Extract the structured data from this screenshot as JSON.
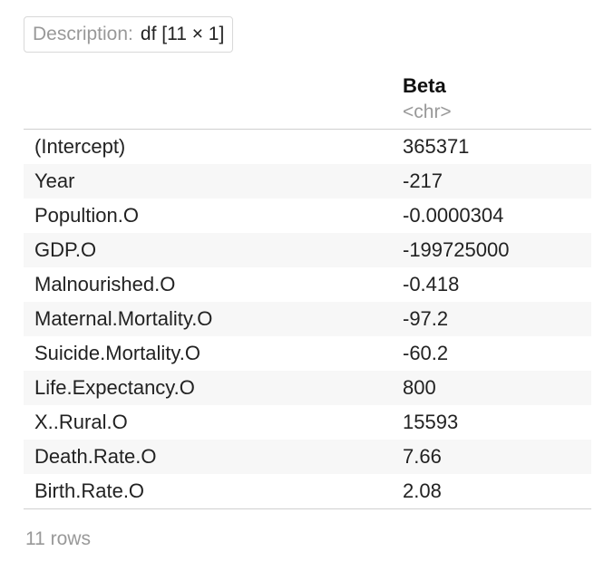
{
  "description": {
    "label": "Description:",
    "value": "df [11 × 1]"
  },
  "table": {
    "column": {
      "name": "Beta",
      "type": "<chr>"
    },
    "rows": [
      {
        "name": "(Intercept)",
        "value": "365371"
      },
      {
        "name": "Year",
        "value": "-217"
      },
      {
        "name": "Popultion.O",
        "value": "-0.0000304"
      },
      {
        "name": "GDP.O",
        "value": "-199725000"
      },
      {
        "name": "Malnourished.O",
        "value": "-0.418"
      },
      {
        "name": "Maternal.Mortality.O",
        "value": "-97.2"
      },
      {
        "name": "Suicide.Mortality.O",
        "value": "-60.2"
      },
      {
        "name": "Life.Expectancy.O",
        "value": "800"
      },
      {
        "name": "X..Rural.O",
        "value": "15593"
      },
      {
        "name": "Death.Rate.O",
        "value": "7.66"
      },
      {
        "name": "Birth.Rate.O",
        "value": "2.08"
      }
    ]
  },
  "footer": {
    "row_count": "11 rows"
  }
}
